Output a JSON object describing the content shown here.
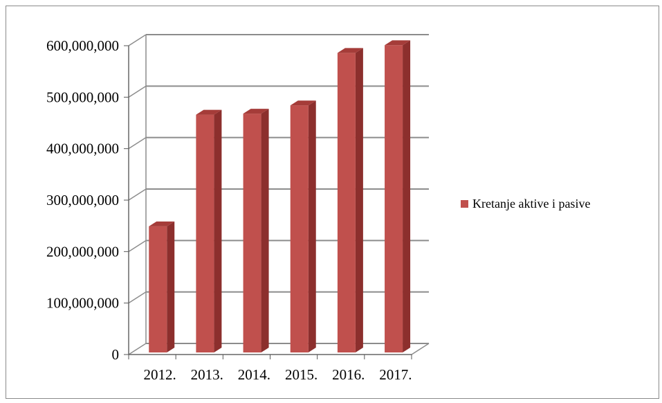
{
  "chart_data": {
    "type": "bar",
    "style": "3d-column",
    "categories": [
      "2012.",
      "2013.",
      "2014.",
      "2015.",
      "2016.",
      "2017."
    ],
    "series": [
      {
        "name": "Kretanje aktive i pasive",
        "values": [
          245000000,
          462000000,
          464000000,
          480000000,
          582000000,
          597000000
        ],
        "color": "#c0504d"
      }
    ],
    "yticks": [
      "0",
      "100,000,000",
      "200,000,000",
      "300,000,000",
      "400,000,000",
      "500,000,000",
      "600,000,000"
    ],
    "ylim": [
      0,
      600000000
    ],
    "grid": true,
    "legend": "right"
  },
  "colors": {
    "bar_front": "#c0504d",
    "bar_side": "#8c2f2d",
    "bar_top": "#a53c39",
    "grid": "#8c8c8c"
  }
}
